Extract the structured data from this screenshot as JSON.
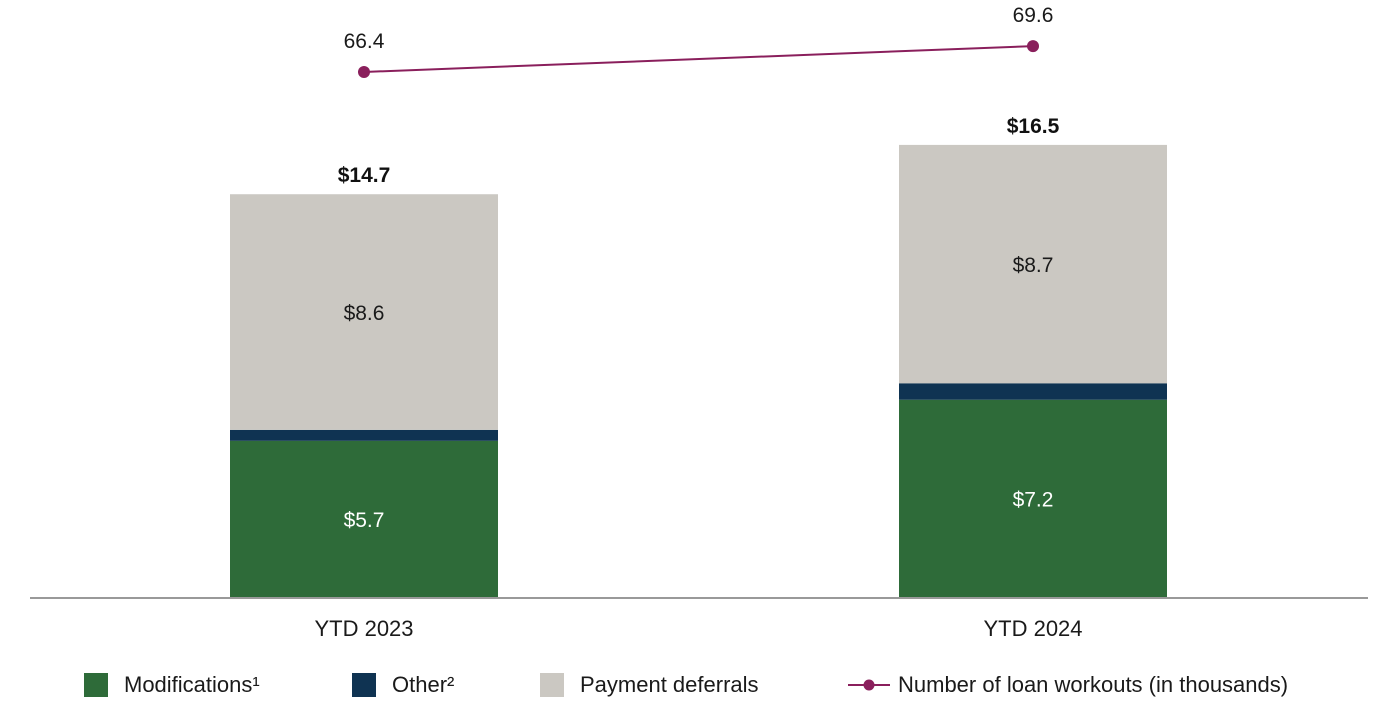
{
  "chart_data": {
    "type": "bar",
    "stacked": true,
    "categories": [
      "YTD 2023",
      "YTD 2024"
    ],
    "series": [
      {
        "name": "Modifications¹",
        "color": "#2e6b39",
        "values": [
          5.7,
          7.2
        ],
        "labels": [
          "$5.7",
          "$7.2"
        ]
      },
      {
        "name": "Other²",
        "color": "#0f3352",
        "values": [
          0.4,
          0.6
        ],
        "labels": [
          "",
          ""
        ]
      },
      {
        "name": "Payment deferrals",
        "color": "#cbc8c2",
        "values": [
          8.6,
          8.7
        ],
        "labels": [
          "$8.6",
          "$8.7"
        ]
      }
    ],
    "totals": [
      14.7,
      16.5
    ],
    "total_labels": [
      "$14.7",
      "$16.5"
    ],
    "line_series": {
      "name": "Number of loan workouts (in thousands)",
      "color": "#8a1f5c",
      "values": [
        66.4,
        69.6
      ],
      "labels": [
        "66.4",
        "69.6"
      ]
    },
    "legend_position": "bottom"
  }
}
